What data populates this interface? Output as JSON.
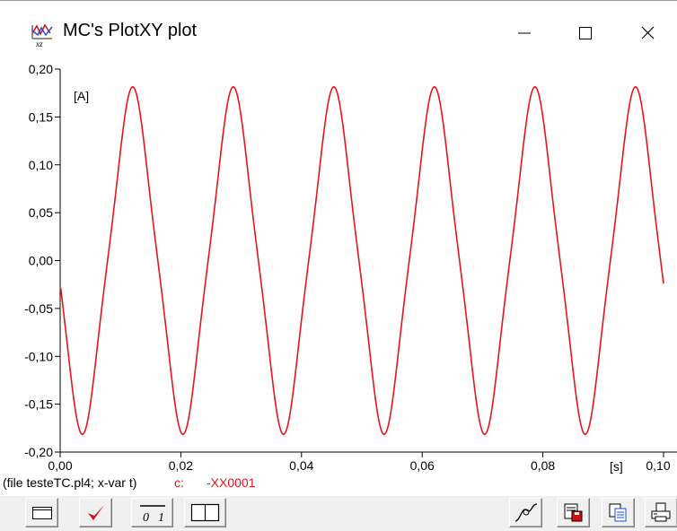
{
  "window": {
    "title": "MC's PlotXY plot",
    "controls": [
      "minimize",
      "maximize",
      "close"
    ]
  },
  "chart_data": {
    "type": "line",
    "xlabel": "[s]",
    "ylabel": "[A]",
    "xlim": [
      0,
      0.1
    ],
    "ylim": [
      -0.2,
      0.2
    ],
    "x_ticks": [
      "0,00",
      "0,02",
      "0,04",
      "0,06",
      "0,08",
      "0,10"
    ],
    "y_ticks": [
      "0,20",
      "0,15",
      "0,10",
      "0,05",
      "0,00",
      "-0,05",
      "-0,10",
      "-0,15",
      "-0,20"
    ],
    "grid": false,
    "series": [
      {
        "name": "-XX0001",
        "color": "#e8141c",
        "frequency_hz": 60,
        "amplitude": 0.172,
        "x": [
          0,
          0.001,
          0.0021,
          0.0042,
          0.0063,
          0.0083,
          0.0104,
          0.0125,
          0.0146,
          0.0167,
          0.0177,
          0.0188,
          0.0208,
          0.0229,
          0.025,
          0.0271,
          0.0292,
          0.0313,
          0.0333,
          0.0344,
          0.0354,
          0.0375,
          0.0396,
          0.0417,
          0.0438,
          0.0458,
          0.0479,
          0.05,
          0.051,
          0.0521,
          0.0542,
          0.0563,
          0.0583,
          0.0604,
          0.0625,
          0.0646,
          0.0667,
          0.0677,
          0.0688,
          0.0708,
          0.0729,
          0.075,
          0.0771,
          0.0792,
          0.0813,
          0.0833,
          0.0844,
          0.0854,
          0.0875,
          0.0896,
          0.0917,
          0.0938,
          0.0958,
          0.0979,
          0.1
        ],
        "y": [
          -0.03,
          -0.095,
          -0.14,
          -0.172,
          -0.142,
          -0.02,
          0.12,
          0.172,
          0.13,
          0.0,
          -0.09,
          -0.14,
          -0.172,
          -0.142,
          -0.02,
          0.12,
          0.172,
          0.13,
          0.0,
          -0.09,
          -0.14,
          -0.172,
          -0.142,
          -0.02,
          0.12,
          0.172,
          0.13,
          0.0,
          -0.09,
          -0.14,
          -0.172,
          -0.142,
          -0.02,
          0.12,
          0.172,
          0.13,
          0.0,
          -0.09,
          -0.14,
          -0.172,
          -0.142,
          -0.02,
          0.12,
          0.172,
          0.13,
          0.0,
          -0.09,
          -0.14,
          -0.172,
          -0.142,
          -0.02,
          0.12,
          0.172,
          0.13,
          0.0
        ]
      }
    ]
  },
  "info_line": {
    "file_text": "(file testeTC.pl4; x-var t)",
    "curve_label": "c:",
    "curve_name": "-XX0001"
  },
  "toolbar": {
    "left_buttons": [
      "window-icon",
      "check-icon",
      "scale-icon",
      "split-icon"
    ],
    "right_buttons": [
      "curve-icon",
      "save-icon",
      "copy-icon",
      "print-icon"
    ],
    "scale_label_left": "0",
    "scale_label_right": "1"
  },
  "colors": {
    "curve": "#e8141c",
    "info_red": "#e8141c",
    "axes": "#000000"
  }
}
